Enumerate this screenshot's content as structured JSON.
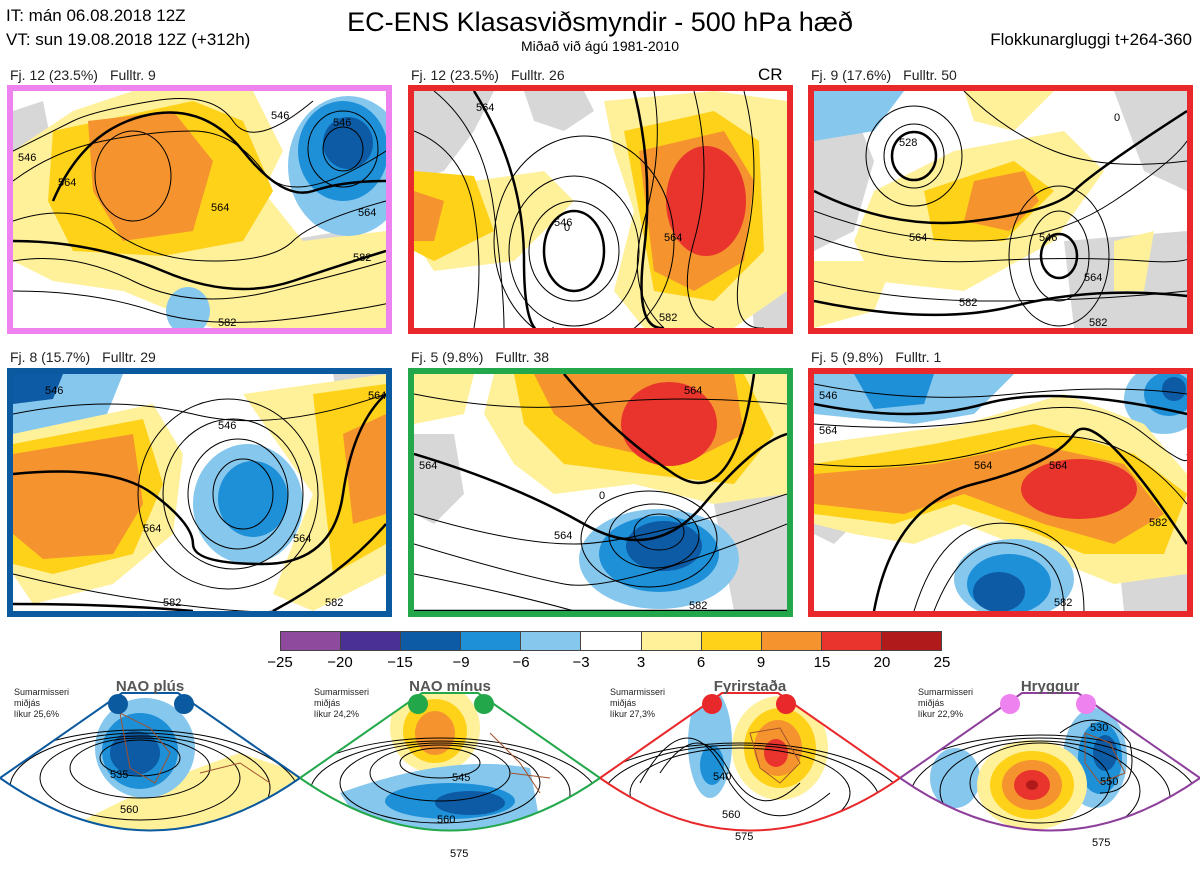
{
  "header": {
    "it_line": "IT: mán 06.08.2018 12Z",
    "vt_line": "VT: sun 19.08.2018 12Z  (+312h)",
    "title": "EC-ENS Klasasviðsmyndir - 500 hPa hæð",
    "subtitle": "Miðað við ágú 1981-2010",
    "window": "Flokkunargluggi t+264-360"
  },
  "panels": [
    {
      "count": "Fj. 12 (23.5%)",
      "members": "Fulltr. 9",
      "border_color": "#ee82ee"
    },
    {
      "count": "Fj. 12 (23.5%)",
      "members": "Fulltr. 26",
      "border_color": "#e8282a",
      "tag": "CR"
    },
    {
      "count": "Fj. 9 (17.6%)",
      "members": "Fulltr. 50",
      "border_color": "#e8282a"
    },
    {
      "count": "Fj. 8 (15.7%)",
      "members": "Fulltr. 29",
      "border_color": "#0b5aa0"
    },
    {
      "count": "Fj. 5 (9.8%)",
      "members": "Fulltr. 38",
      "border_color": "#22a84a"
    },
    {
      "count": "Fj. 5 (9.8%)",
      "members": "Fulltr. 1",
      "border_color": "#e8282a"
    }
  ],
  "contour_labels": {
    "p1": [
      "546",
      "564",
      "564",
      "546",
      "564",
      "582",
      "582",
      "546"
    ],
    "p2": [
      "564",
      "546",
      "564",
      "0",
      "582"
    ],
    "p3": [
      "528",
      "564",
      "546",
      "564",
      "582",
      "582",
      "0"
    ],
    "p4": [
      "546",
      "546",
      "564",
      "564",
      "582",
      "582",
      "564"
    ],
    "p5": [
      "564",
      "564",
      "0",
      "564",
      "582"
    ],
    "p6": [
      "546",
      "564",
      "564",
      "564",
      "582",
      "582"
    ]
  },
  "colorbar": {
    "colors": [
      "#8e4a9c",
      "#4a2f95",
      "#0d5aa5",
      "#1e90d8",
      "#86c7ee",
      "#ffffff",
      "#fff09a",
      "#ffd21a",
      "#f5932e",
      "#e8342c",
      "#b11a1a"
    ],
    "ticks": [
      "−25",
      "−20",
      "−15",
      "−9",
      "−6",
      "−3",
      "3",
      "6",
      "9",
      "15",
      "20",
      "25"
    ]
  },
  "regimes": [
    {
      "name": "NAO plús",
      "color": "#0b5aa0",
      "note": [
        "Sumarmisseri",
        "miðjás",
        "líkur 25,6%"
      ],
      "labels": [
        "535",
        "560"
      ]
    },
    {
      "name": "NAO mínus",
      "color": "#22a84a",
      "note": [
        "Sumarmisseri",
        "miðjás",
        "líkur 24,2%"
      ],
      "labels": [
        "545",
        "560",
        "575"
      ]
    },
    {
      "name": "Fyrirstaða",
      "color": "#e8282a",
      "note": [
        "Sumarmisseri",
        "miðjás",
        "líkur 27,3%"
      ],
      "labels": [
        "540",
        "560",
        "575"
      ]
    },
    {
      "name": "Hryggur",
      "color": "#ee82ee",
      "note": [
        "Sumarmisseri",
        "miðjás",
        "líkur 22,9%"
      ],
      "labels": [
        "530",
        "550",
        "575"
      ]
    }
  ]
}
